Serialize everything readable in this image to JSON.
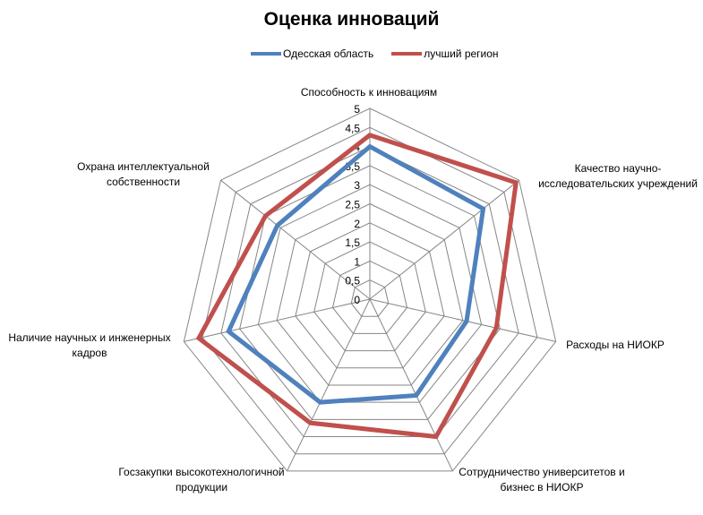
{
  "chart_data": {
    "type": "radar",
    "title": "Оценка инноваций",
    "categories": [
      "Способность к инновациям",
      "Качество научно-исследовательских учреждений",
      "Расходы на НИОКР",
      "Сотрудничество университетов и бизнес в НИОКР",
      "Госзакупки высокотехнологичной продукции",
      "Наличие научных и инженерных кадров",
      "Охрана интеллектуальной собственности"
    ],
    "category_lines": [
      [
        "Способность к инновациям"
      ],
      [
        "Качество научно-",
        "исследовательских учреждений"
      ],
      [
        "Расходы на НИОКР"
      ],
      [
        "Сотрудничество университетов и",
        "бизнес в НИОКР"
      ],
      [
        "Госзакупки высокотехнологичной",
        "продукции"
      ],
      [
        "Наличие научных и инженерных",
        "кадров"
      ],
      [
        "Охрана интеллектуальной",
        "собственности"
      ]
    ],
    "series": [
      {
        "name": "Одесская область",
        "color": "#4F81BD",
        "values": [
          4.0,
          3.8,
          2.6,
          2.8,
          3.0,
          3.8,
          3.1
        ]
      },
      {
        "name": "лучший регион",
        "color": "#C0504D",
        "values": [
          4.3,
          4.9,
          3.4,
          4.0,
          3.6,
          4.6,
          3.5
        ]
      }
    ],
    "rlim": [
      0,
      5
    ],
    "ticks": [
      "0",
      "0,5",
      "1",
      "1,5",
      "2",
      "2,5",
      "3",
      "3,5",
      "4",
      "4,5",
      "5"
    ],
    "grid": true,
    "legend": "top"
  }
}
